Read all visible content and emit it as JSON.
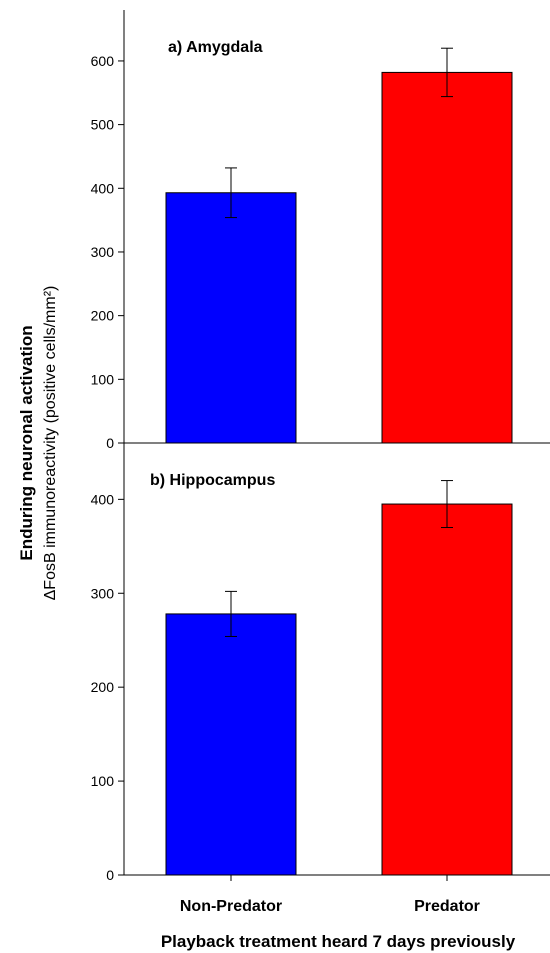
{
  "chart_data": {
    "type": "bar",
    "categories": [
      "Non-Predator",
      "Predator"
    ],
    "xlabel": "Playback treatment heard 7 days previously",
    "ylabel_line1": "Enduring neuronal activation",
    "ylabel_line2": "ΔFosB immunoreactivity  (positive cells/mm²)",
    "panels": [
      {
        "title": "a) Amygdala",
        "values": [
          393,
          582
        ],
        "errors": [
          39,
          38
        ],
        "ylim": [
          0,
          680
        ],
        "yticks": [
          0,
          100,
          200,
          300,
          400,
          500,
          600
        ],
        "colors": [
          "#0000ff",
          "#ff0000"
        ]
      },
      {
        "title": "b) Hippocampus",
        "values": [
          278,
          395
        ],
        "errors": [
          24,
          25
        ],
        "ylim": [
          0,
          460
        ],
        "yticks": [
          0,
          100,
          200,
          300,
          400
        ],
        "colors": [
          "#0000ff",
          "#ff0000"
        ]
      }
    ]
  }
}
